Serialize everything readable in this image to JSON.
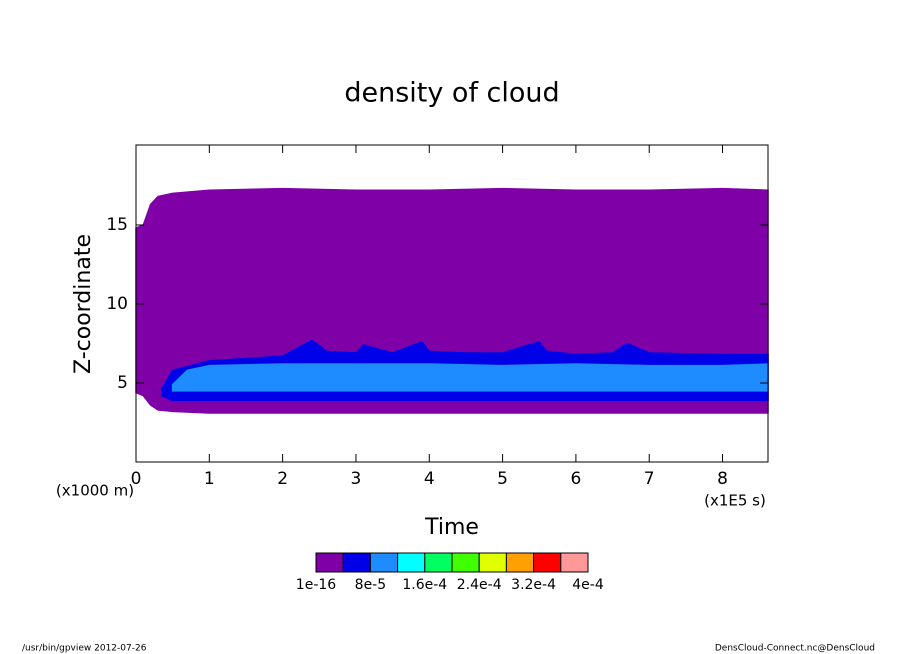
{
  "chart_data": {
    "type": "contour",
    "title": "density of cloud",
    "x_label": "Time",
    "y_label": "Z-coordinate",
    "x_unit": "(x1E5 s)",
    "y_unit": "(x1000 m)",
    "xlim": [
      0,
      8.62
    ],
    "ylim": [
      0,
      20.06
    ],
    "xticks": [
      0,
      1,
      2,
      3,
      4,
      5,
      6,
      7,
      8
    ],
    "yticks": [
      5,
      10,
      15
    ],
    "regions": [
      {
        "color": "#8000a8",
        "x": [
          0,
          0.1,
          0.2,
          0.3,
          0.5,
          1,
          2,
          3,
          4,
          5,
          6,
          7,
          8,
          8.62
        ],
        "upper": [
          14.8,
          15,
          16.3,
          16.8,
          17,
          17.2,
          17.3,
          17.2,
          17.2,
          17.3,
          17.2,
          17.2,
          17.3,
          17.2
        ],
        "lower": [
          4.4,
          4.2,
          3.6,
          3.3,
          3.2,
          3.1,
          3.1,
          3.1,
          3.1,
          3.1,
          3.1,
          3.1,
          3.1,
          3.1
        ]
      },
      {
        "color": "#0000e8",
        "x": [
          0.35,
          0.5,
          1,
          2,
          2.4,
          2.6,
          3,
          3.1,
          3.5,
          3.9,
          4,
          4.5,
          5,
          5.5,
          5.6,
          6,
          6.5,
          6.7,
          7,
          8,
          8.62
        ],
        "upper": [
          4.6,
          5.8,
          6.4,
          6.7,
          7.7,
          7.0,
          6.9,
          7.4,
          6.9,
          7.6,
          7.0,
          6.9,
          6.9,
          7.6,
          7.0,
          6.8,
          6.9,
          7.5,
          6.9,
          6.8,
          6.8
        ],
        "lower": [
          4.2,
          3.9,
          3.9,
          3.9,
          3.9,
          3.9,
          3.9,
          3.9,
          3.9,
          3.9,
          3.9,
          3.9,
          3.9,
          3.9,
          3.9,
          3.9,
          3.9,
          3.9,
          3.9,
          3.9,
          3.9
        ]
      },
      {
        "color": "#1e8cff",
        "x": [
          0.5,
          0.7,
          1,
          2,
          3,
          4,
          5,
          6,
          7,
          8,
          8.62
        ],
        "upper": [
          4.9,
          5.8,
          6.1,
          6.2,
          6.2,
          6.2,
          6.1,
          6.2,
          6.1,
          6.1,
          6.2
        ],
        "lower": [
          4.5,
          4.5,
          4.5,
          4.5,
          4.5,
          4.5,
          4.5,
          4.5,
          4.5,
          4.5,
          4.5
        ]
      }
    ],
    "colorbar": {
      "colors": [
        "#8000a8",
        "#0000e8",
        "#1e8cff",
        "#00ffff",
        "#00ff60",
        "#40ff00",
        "#e0ff00",
        "#ffa000",
        "#ff0000",
        "#ff9898"
      ],
      "levels": [
        {
          "value": 1e-16,
          "label": "1e-16"
        },
        {
          "value": 8e-05,
          "label": "8e-5"
        },
        {
          "value": 0.00016,
          "label": "1.6e-4"
        },
        {
          "value": 0.00024,
          "label": "2.4e-4"
        },
        {
          "value": 0.00032,
          "label": "3.2e-4"
        },
        {
          "value": 0.0004,
          "label": "4e-4"
        }
      ]
    }
  },
  "footer": {
    "left": "/usr/bin/gpview  2012-07-26",
    "right": "DensCloud-Connect.nc@DensCloud"
  }
}
